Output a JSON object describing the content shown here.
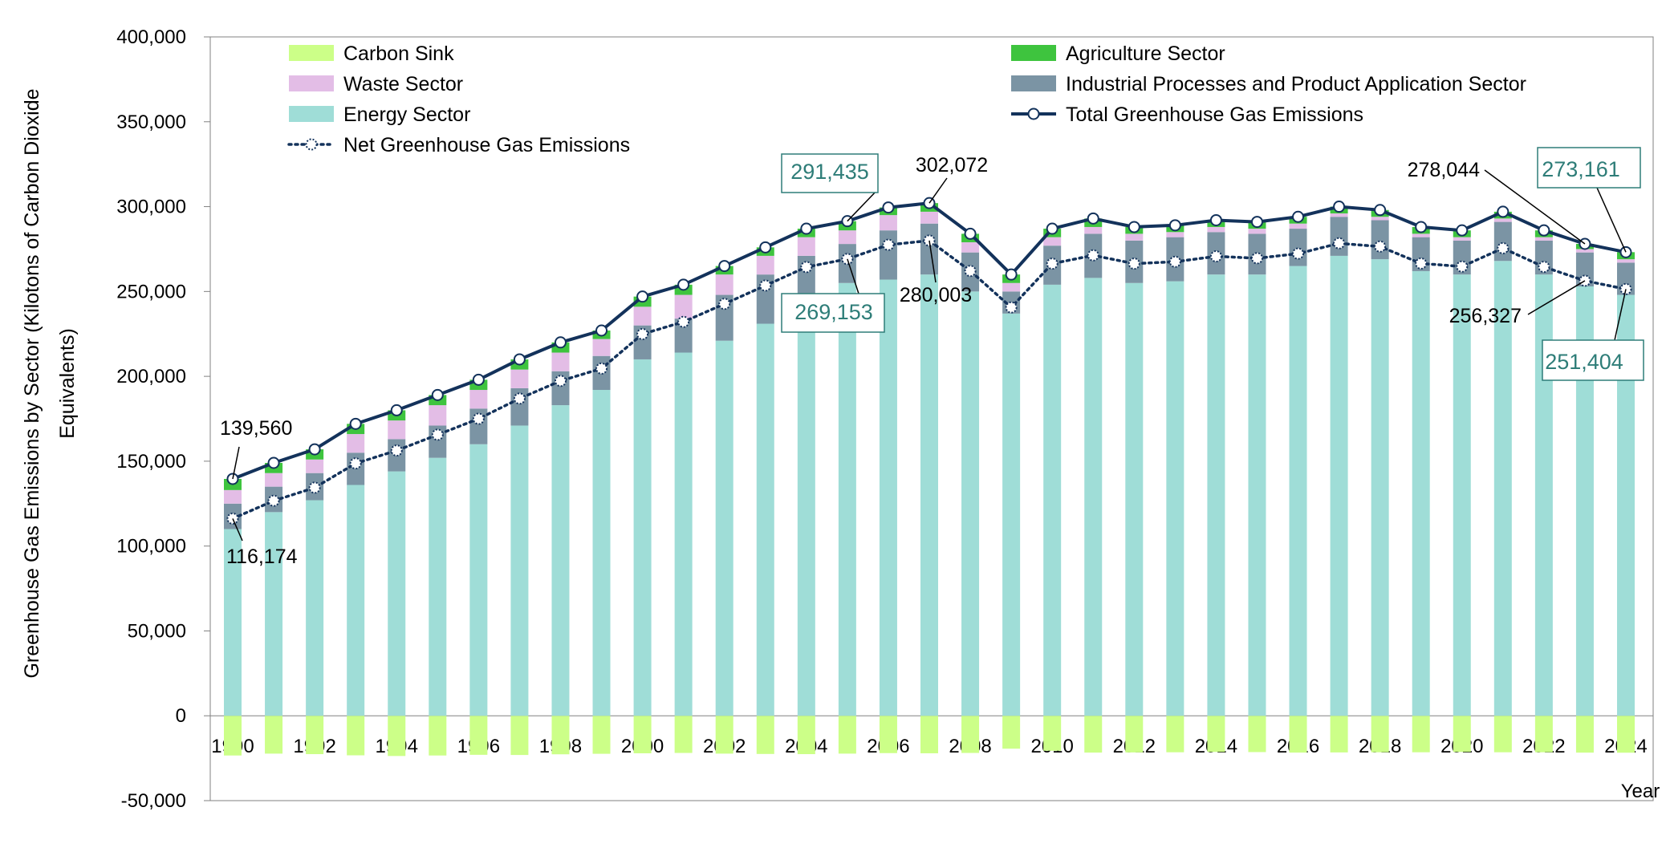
{
  "chart_data": {
    "type": "bar",
    "ylabel": "Greenhouse Gas Emissions by Sector (Kilotons of Carbon Dioxide Equivalents)",
    "ylabel_lines": [
      "Greenhouse Gas Emissions by Sector (Kilotons of Carbon Dioxide",
      "Equivalents)"
    ],
    "xlabel": "Year",
    "ylim": [
      -50000,
      400000
    ],
    "yticks": [
      -50000,
      0,
      50000,
      100000,
      150000,
      200000,
      250000,
      300000,
      350000,
      400000
    ],
    "ytick_labels": [
      "-50,000",
      "0",
      "50,000",
      "100,000",
      "150,000",
      "200,000",
      "250,000",
      "300,000",
      "350,000",
      "400,000"
    ],
    "xtick_labels": [
      "1990",
      "1992",
      "1994",
      "1996",
      "1998",
      "2000",
      "2002",
      "2004",
      "2006",
      "2008",
      "2010",
      "2012",
      "2014",
      "2016",
      "2018",
      "2020",
      "2022",
      "2024"
    ],
    "categories": [
      "1990",
      "1991",
      "1992",
      "1993",
      "1994",
      "1995",
      "1996",
      "1997",
      "1998",
      "1999",
      "2000",
      "2001",
      "2002",
      "2003",
      "2004",
      "2005",
      "2006",
      "2007",
      "2008",
      "2009",
      "2010",
      "2011",
      "2012",
      "2013",
      "2014",
      "2015",
      "2016",
      "2017",
      "2018",
      "2019",
      "2020",
      "2021",
      "2022",
      "2023",
      "2024"
    ],
    "legend_position": "top",
    "colors": {
      "carbon_sink": "#ccff88",
      "agriculture": "#3ec43e",
      "waste": "#e3bde6",
      "industrial": "#7b94a4",
      "energy": "#9fddd7",
      "total_line": "#13325b",
      "net_line": "#13325b",
      "callout_teal": "#2e7d78"
    },
    "series": [
      {
        "key": "carbon_sink",
        "name": "Carbon Sink",
        "values": [
          -23400,
          -22300,
          -22600,
          -23300,
          -23700,
          -23400,
          -23000,
          -23100,
          -22700,
          -22400,
          -22100,
          -21900,
          -22300,
          -22500,
          -22600,
          -22300,
          -22000,
          -22100,
          -21900,
          -19400,
          -20600,
          -21700,
          -21600,
          -21500,
          -21300,
          -21400,
          -21700,
          -21600,
          -21500,
          -21500,
          -21300,
          -21500,
          -21500,
          -21717,
          -21757
        ]
      },
      {
        "key": "energy",
        "name": "Energy Sector",
        "values": [
          110000,
          120000,
          127000,
          136000,
          144000,
          152000,
          160000,
          171000,
          183000,
          192000,
          210000,
          214000,
          221000,
          231000,
          245000,
          255000,
          257000,
          260000,
          250000,
          237000,
          254000,
          258000,
          255000,
          256000,
          260000,
          260000,
          265000,
          271000,
          269000,
          262000,
          260000,
          268000,
          260000,
          253000,
          248000
        ]
      },
      {
        "key": "industrial",
        "name": "Industrial Processes and Product Application Sector",
        "values": [
          15000,
          15000,
          16000,
          19000,
          19000,
          19000,
          21000,
          22000,
          20000,
          20000,
          20000,
          20000,
          27000,
          29000,
          26000,
          23000,
          29000,
          30000,
          23000,
          13000,
          23000,
          26000,
          25000,
          26000,
          25000,
          24000,
          22000,
          23000,
          23000,
          20000,
          20000,
          23000,
          20000,
          20000,
          19000
        ]
      },
      {
        "key": "waste",
        "name": "Waste Sector",
        "values": [
          8000,
          8000,
          8000,
          11000,
          11000,
          12000,
          11000,
          11000,
          11000,
          10000,
          11000,
          14000,
          12000,
          11000,
          11000,
          8000,
          9000,
          7000,
          6000,
          5000,
          5000,
          4000,
          4000,
          3000,
          3000,
          3000,
          3000,
          2000,
          2000,
          2000,
          2000,
          2000,
          2000,
          2000,
          2000
        ]
      },
      {
        "key": "agriculture",
        "name": "Agriculture Sector",
        "values": [
          6560,
          6000,
          6000,
          6000,
          6000,
          6000,
          6000,
          6000,
          6000,
          5000,
          6000,
          6000,
          5000,
          5000,
          5000,
          5435,
          4500,
          5072,
          5000,
          5000,
          5000,
          5000,
          4000,
          4000,
          4000,
          4000,
          4000,
          4000,
          4000,
          4000,
          4000,
          4000,
          4000,
          3044,
          4161
        ]
      },
      {
        "key": "total",
        "name": "Total Greenhouse Gas Emissions",
        "values": [
          139560,
          149000,
          157000,
          172000,
          180000,
          189000,
          198000,
          210000,
          220000,
          227000,
          247000,
          254000,
          265000,
          276000,
          287000,
          291435,
          299500,
          302072,
          284000,
          260000,
          287000,
          293000,
          288000,
          289000,
          292000,
          291000,
          294000,
          300000,
          298000,
          288000,
          286000,
          297000,
          286000,
          278044,
          273161
        ]
      },
      {
        "key": "net",
        "name": "Net Greenhouse Gas Emissions",
        "values": [
          116174,
          126700,
          134400,
          148700,
          156300,
          165600,
          175000,
          186900,
          197300,
          204600,
          224900,
          232100,
          242700,
          253500,
          264400,
          269153,
          277500,
          280003,
          262100,
          240600,
          266400,
          271300,
          266400,
          267500,
          270700,
          269600,
          272300,
          278400,
          276500,
          266500,
          264700,
          275500,
          264500,
          256327,
          251404
        ]
      }
    ],
    "annotations": [
      {
        "text": "139,560",
        "style": "plain"
      },
      {
        "text": "116,174",
        "style": "plain"
      },
      {
        "text": "291,435",
        "style": "boxed"
      },
      {
        "text": "269,153",
        "style": "boxed"
      },
      {
        "text": "302,072",
        "style": "plain"
      },
      {
        "text": "280,003",
        "style": "plain"
      },
      {
        "text": "278,044",
        "style": "plain"
      },
      {
        "text": "256,327",
        "style": "plain"
      },
      {
        "text": "273,161",
        "style": "boxed"
      },
      {
        "text": "251,404",
        "style": "boxed"
      }
    ]
  }
}
